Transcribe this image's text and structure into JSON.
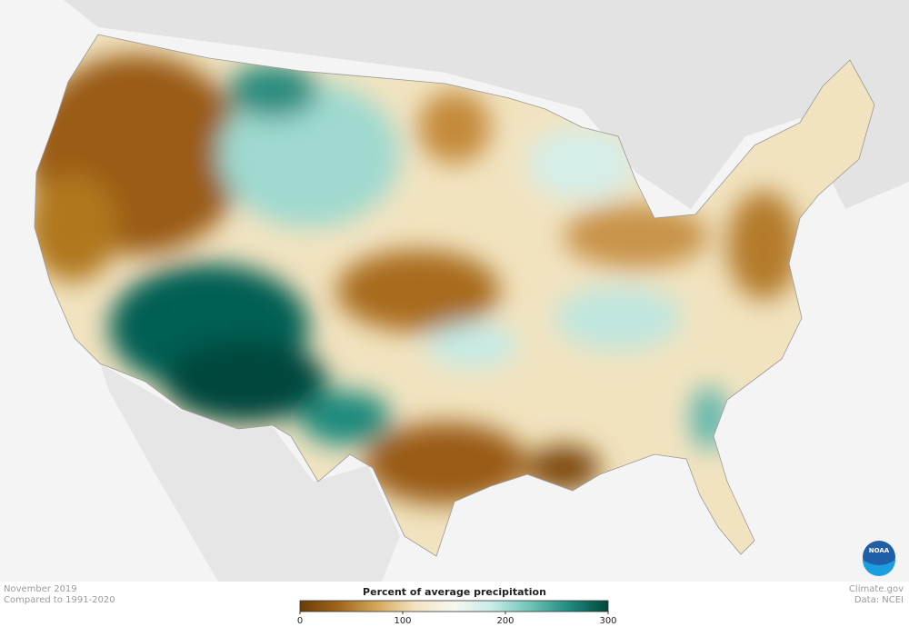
{
  "header": {
    "date": "November 2019",
    "baseline": "Compared to 1991-2020"
  },
  "credits": {
    "source": "Climate.gov",
    "data": "Data: NCEI",
    "logo": "NOAA"
  },
  "legend": {
    "title": "Percent of average precipitation",
    "range": [
      0,
      300
    ],
    "ticks": [
      0,
      100,
      200,
      300
    ],
    "colors": [
      "#6b3d06",
      "#a0661a",
      "#d4a85a",
      "#f3e4c2",
      "#f7f7f0",
      "#c6ebe5",
      "#6cc2b6",
      "#1f8a7d",
      "#00473c"
    ]
  }
}
